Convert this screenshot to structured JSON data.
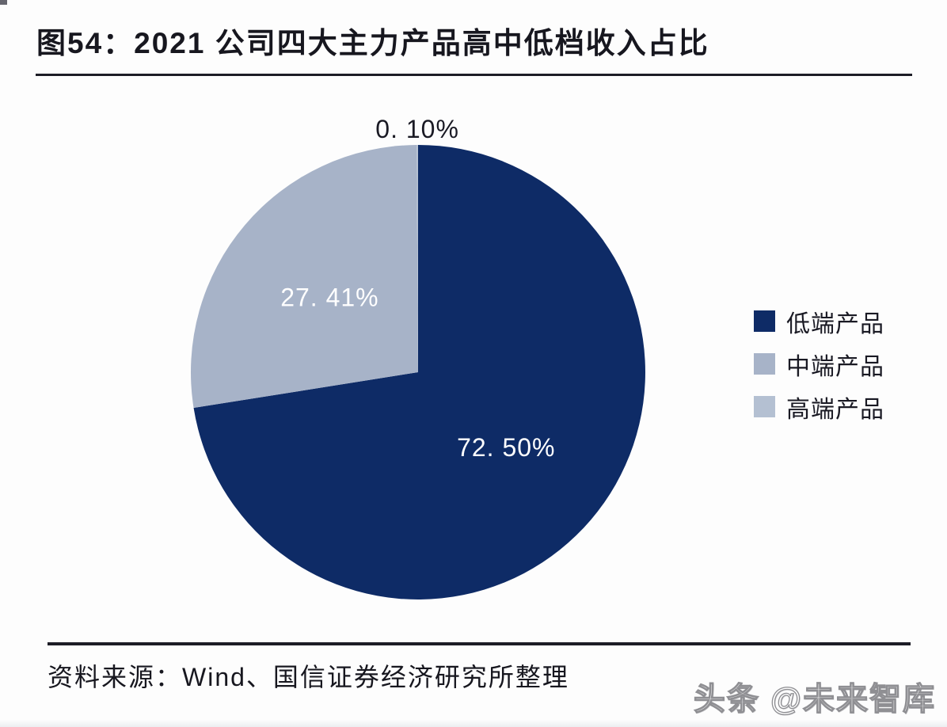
{
  "figure": {
    "title": "图54：2021 公司四大主力产品高中低档收入占比",
    "source": "资料来源：Wind、国信证券经济研究所整理",
    "watermark": "头条 @未来智库"
  },
  "colors": {
    "low_end": "#0e2b66",
    "mid_end": "#a7b3c8",
    "high_end": "#b4c0d2",
    "text": "#17171f",
    "rule": "#1d1d26",
    "label_on_slice": "#ffffff"
  },
  "chart_data": {
    "type": "pie",
    "title": "2021 公司四大主力产品高中低档收入占比",
    "start_angle_deg": 0,
    "direction": "clockwise",
    "legend_position": "right",
    "grid": false,
    "slices": [
      {
        "name": "低端产品",
        "value": 72.5,
        "display": "72. 50%",
        "color": "#0e2b66",
        "label_color": "#ffffff",
        "label_placement": "inside"
      },
      {
        "name": "中端产品",
        "value": 27.41,
        "display": "27. 41%",
        "color": "#a7b3c8",
        "label_color": "#ffffff",
        "label_placement": "inside"
      },
      {
        "name": "高端产品",
        "value": 0.1,
        "display": "0. 10%",
        "color": "#b4c0d2",
        "label_color": "#1a1a24",
        "label_placement": "outside-top"
      }
    ],
    "legend": [
      {
        "label": "低端产品",
        "color": "#0e2b66"
      },
      {
        "label": "中端产品",
        "color": "#a7b3c8"
      },
      {
        "label": "高端产品",
        "color": "#b4c0d2"
      }
    ]
  }
}
